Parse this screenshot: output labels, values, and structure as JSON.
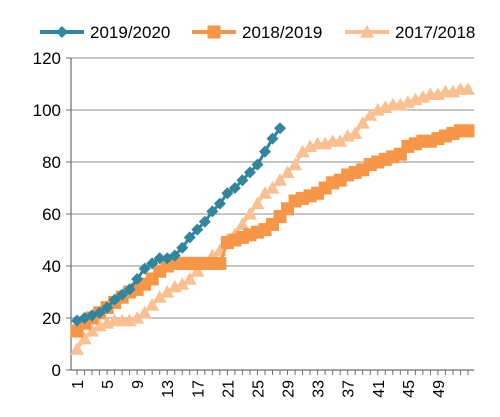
{
  "chart_data": {
    "type": "line",
    "title": "",
    "xlabel": "",
    "ylabel": "",
    "ylim": [
      0,
      120
    ],
    "y_ticks": [
      0,
      20,
      40,
      60,
      80,
      100,
      120
    ],
    "xlim": [
      1,
      53
    ],
    "x_ticks": [
      1,
      5,
      9,
      13,
      17,
      21,
      25,
      29,
      33,
      37,
      41,
      45,
      49
    ],
    "grid": "horizontal",
    "legend_position": "top",
    "series": [
      {
        "name": "2019/2020",
        "color": "#31859C",
        "marker": "diamond",
        "x": [
          1,
          2,
          3,
          4,
          5,
          6,
          7,
          8,
          9,
          10,
          11,
          12,
          13,
          14,
          15,
          16,
          17,
          18,
          19,
          20,
          21,
          22,
          23,
          24,
          25,
          26,
          27,
          28
        ],
        "values": [
          19,
          20,
          21,
          22,
          24,
          27,
          29,
          31,
          35,
          39,
          41,
          43,
          43,
          44,
          47,
          51,
          54,
          57,
          61,
          64,
          68,
          70,
          73,
          76,
          79,
          84,
          89,
          93
        ]
      },
      {
        "name": "2018/2019",
        "color": "#F79646",
        "marker": "square",
        "x": [
          1,
          2,
          3,
          4,
          5,
          6,
          7,
          8,
          9,
          10,
          11,
          12,
          13,
          14,
          15,
          16,
          17,
          18,
          19,
          20,
          21,
          22,
          23,
          24,
          25,
          26,
          27,
          28,
          29,
          30,
          31,
          32,
          33,
          34,
          35,
          36,
          37,
          38,
          39,
          40,
          41,
          42,
          43,
          44,
          45,
          46,
          47,
          48,
          49,
          50,
          51,
          52,
          53
        ],
        "values": [
          15,
          18,
          20,
          22,
          24,
          26,
          28,
          30,
          31,
          33,
          35,
          38,
          40,
          41,
          41,
          41,
          41,
          41,
          41,
          41,
          49,
          50,
          51,
          52,
          53,
          54,
          56,
          59,
          62,
          65,
          66,
          67,
          68,
          70,
          72,
          73,
          75,
          76,
          77,
          79,
          80,
          81,
          82,
          83,
          86,
          87,
          88,
          88,
          89,
          90,
          91,
          92,
          92
        ]
      },
      {
        "name": "2017/2018",
        "color": "#FAC090",
        "marker": "triangle",
        "x": [
          1,
          2,
          3,
          4,
          5,
          6,
          7,
          8,
          9,
          10,
          11,
          12,
          13,
          14,
          15,
          16,
          17,
          18,
          19,
          20,
          21,
          22,
          23,
          24,
          25,
          26,
          27,
          28,
          29,
          30,
          31,
          32,
          33,
          34,
          35,
          36,
          37,
          38,
          39,
          40,
          41,
          42,
          43,
          44,
          45,
          46,
          47,
          48,
          49,
          50,
          51,
          52,
          53
        ],
        "values": [
          8,
          12,
          15,
          17,
          18,
          19,
          19,
          19,
          20,
          22,
          25,
          28,
          30,
          32,
          33,
          35,
          38,
          41,
          44,
          46,
          50,
          52,
          56,
          60,
          64,
          68,
          70,
          73,
          76,
          79,
          84,
          86,
          87,
          87,
          88,
          88,
          90,
          91,
          95,
          98,
          100,
          101,
          102,
          102,
          103,
          104,
          105,
          106,
          106,
          107,
          107,
          108,
          108
        ]
      }
    ]
  }
}
